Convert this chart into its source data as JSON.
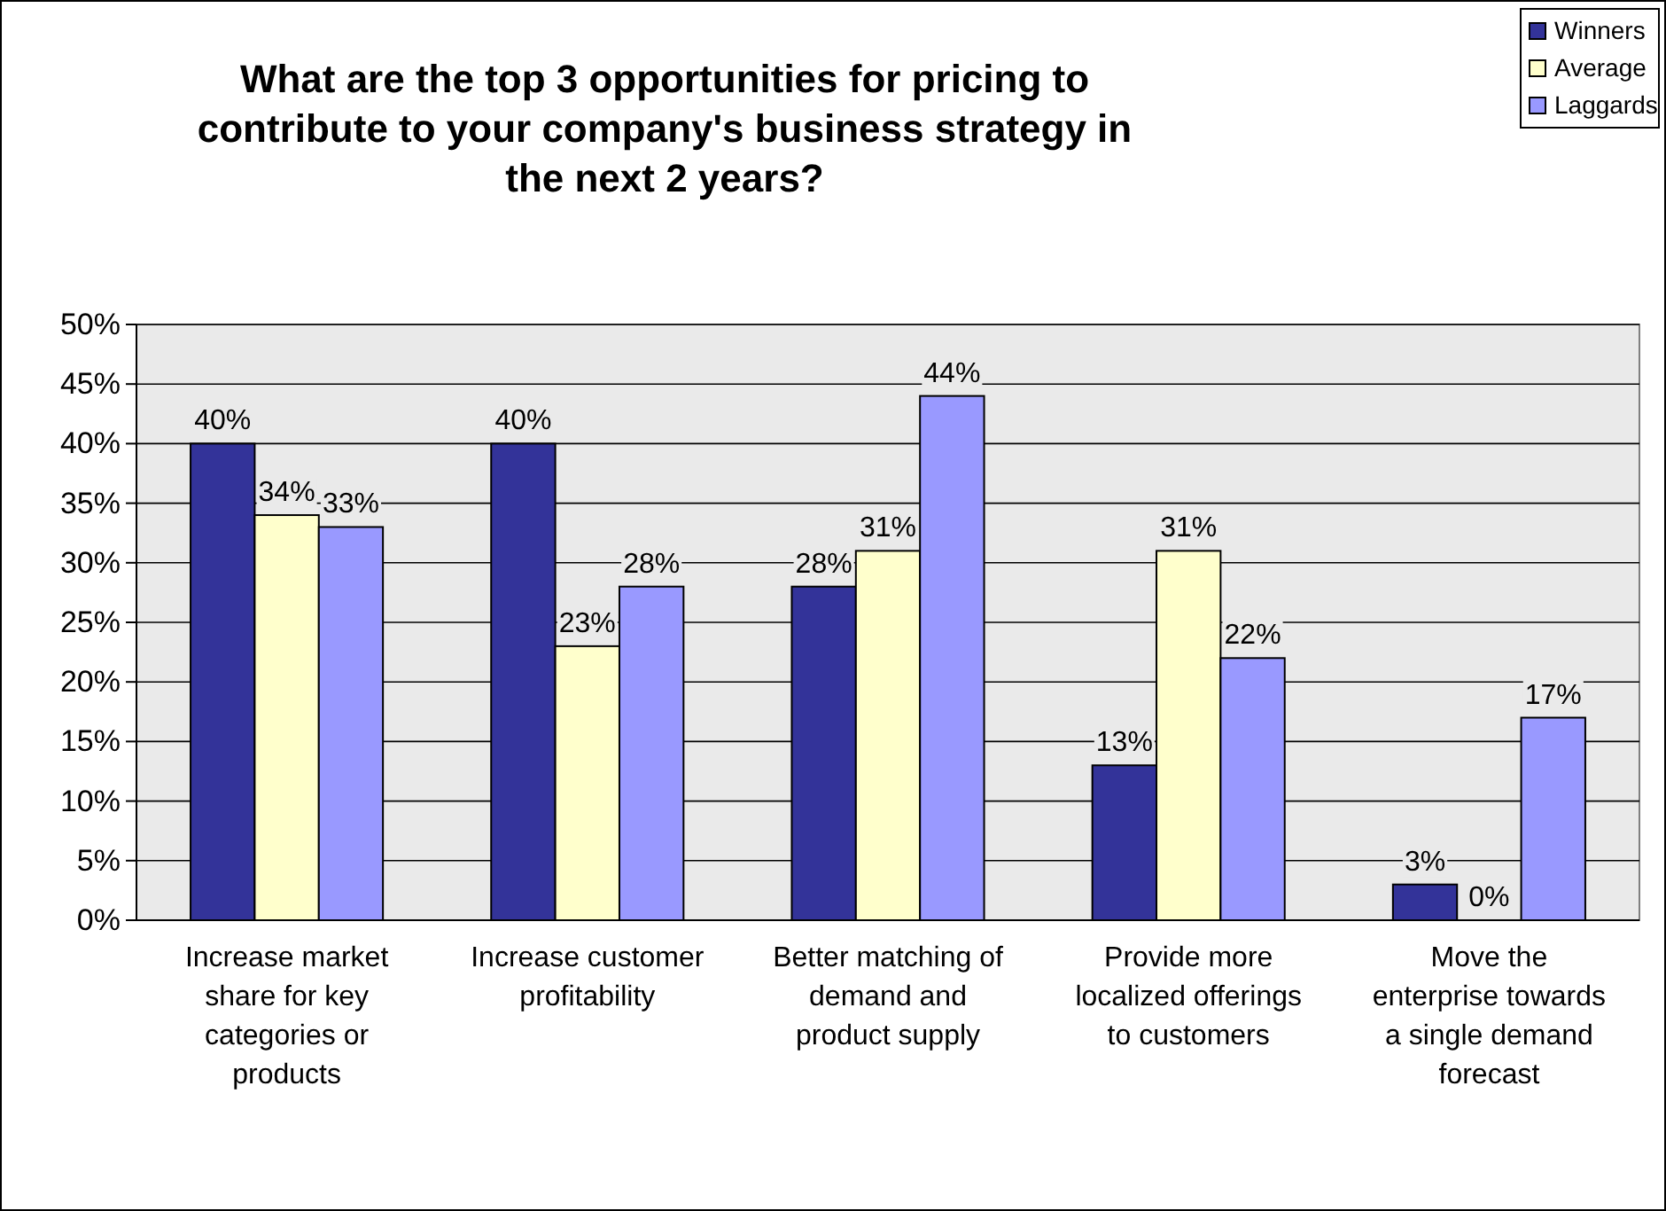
{
  "chart_data": {
    "type": "bar",
    "title": "What are the top 3 opportunities for pricing to contribute to your company's business strategy in the next 2 years?",
    "categories": [
      "Increase market share for key categories or products",
      "Increase customer profitability",
      "Better matching of demand and product supply",
      "Provide more localized offerings to customers",
      "Move the enterprise towards a single demand forecast"
    ],
    "series": [
      {
        "name": "Winners",
        "color": "#333399",
        "values": [
          40,
          40,
          28,
          13,
          3
        ],
        "value_labels": [
          "40%",
          "40%",
          "28%",
          "13%",
          "3%"
        ]
      },
      {
        "name": "Average",
        "color": "#ffffcc",
        "values": [
          34,
          23,
          31,
          31,
          0
        ],
        "value_labels": [
          "34%",
          "23%",
          "31%",
          "31%",
          "0%"
        ]
      },
      {
        "name": "Laggards",
        "color": "#9999ff",
        "values": [
          33,
          28,
          44,
          22,
          17
        ],
        "value_labels": [
          "33%",
          "28%",
          "44%",
          "22%",
          "17%"
        ]
      }
    ],
    "ylim": [
      0,
      50
    ],
    "yticks": [
      {
        "value": 0,
        "label": "0%"
      },
      {
        "value": 5,
        "label": "5%"
      },
      {
        "value": 10,
        "label": "10%"
      },
      {
        "value": 15,
        "label": "15%"
      },
      {
        "value": 20,
        "label": "20%"
      },
      {
        "value": 25,
        "label": "25%"
      },
      {
        "value": 30,
        "label": "30%"
      },
      {
        "value": 35,
        "label": "35%"
      },
      {
        "value": 40,
        "label": "40%"
      },
      {
        "value": 45,
        "label": "45%"
      },
      {
        "value": 50,
        "label": "50%"
      }
    ],
    "grid": "y",
    "legend": "top right"
  }
}
